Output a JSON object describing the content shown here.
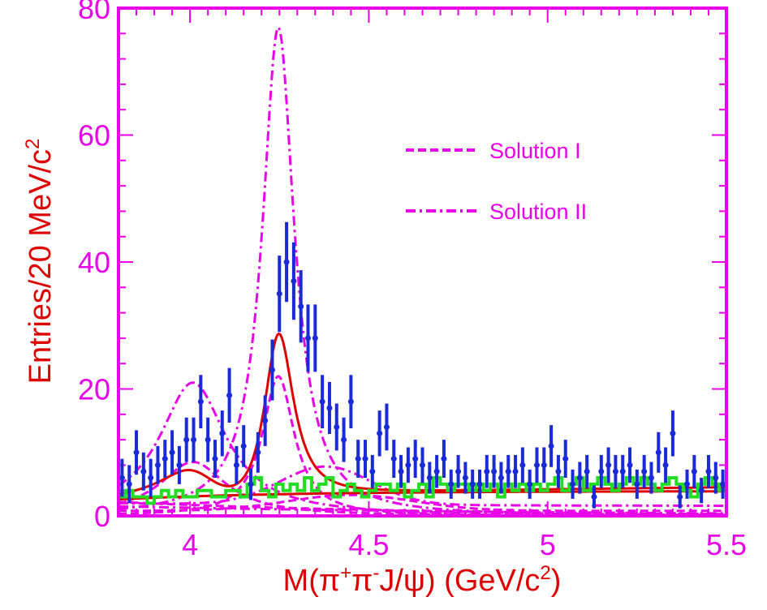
{
  "chart_data": {
    "type": "scatter",
    "xlabel": {
      "main": "M(π",
      "sup1": "+",
      "mid1": "π",
      "sup2": "-",
      "mid2": "J/ψ) (GeV/c",
      "sup3": "2",
      "end": ")"
    },
    "ylabel": {
      "main": "Entries/20 MeV/c",
      "sup": "2"
    },
    "xlim": [
      3.8,
      5.5
    ],
    "ylim": [
      0,
      80
    ],
    "xticks": [
      {
        "value": 4.0,
        "label": "4"
      },
      {
        "value": 4.5,
        "label": "4.5"
      },
      {
        "value": 5.0,
        "label": "5"
      },
      {
        "value": 5.5,
        "label": "5.5"
      }
    ],
    "yticks": [
      {
        "value": 0,
        "label": "0"
      },
      {
        "value": 20,
        "label": "20"
      },
      {
        "value": 40,
        "label": "40"
      },
      {
        "value": 60,
        "label": "60"
      },
      {
        "value": 80,
        "label": "80"
      }
    ],
    "colors": {
      "frame": "#e800e8",
      "data": "#1a2ad6",
      "fit": "#dd0000",
      "background": "#22dd22",
      "components": "#e800e8"
    },
    "legend": {
      "position": "top-right",
      "entries": [
        {
          "label": "Solution I",
          "style": "dashed"
        },
        {
          "label": "Solution II",
          "style": "dash-dot"
        }
      ]
    },
    "series": [
      {
        "kind": "data-points",
        "x": [
          3.81,
          3.83,
          3.85,
          3.87,
          3.89,
          3.91,
          3.93,
          3.95,
          3.97,
          3.99,
          4.01,
          4.03,
          4.05,
          4.07,
          4.09,
          4.11,
          4.13,
          4.15,
          4.17,
          4.19,
          4.21,
          4.23,
          4.25,
          4.27,
          4.29,
          4.31,
          4.33,
          4.35,
          4.37,
          4.39,
          4.41,
          4.43,
          4.45,
          4.47,
          4.49,
          4.51,
          4.53,
          4.55,
          4.57,
          4.59,
          4.61,
          4.63,
          4.65,
          4.67,
          4.69,
          4.71,
          4.73,
          4.75,
          4.77,
          4.79,
          4.81,
          4.83,
          4.85,
          4.87,
          4.89,
          4.91,
          4.93,
          4.95,
          4.97,
          4.99,
          5.01,
          5.03,
          5.05,
          5.07,
          5.09,
          5.11,
          5.13,
          5.15,
          5.17,
          5.19,
          5.21,
          5.23,
          5.25,
          5.27,
          5.29,
          5.31,
          5.33,
          5.35,
          5.37,
          5.39,
          5.41,
          5.43,
          5.45,
          5.47,
          5.49
        ],
        "y": [
          6,
          5,
          10,
          7,
          6,
          8,
          9,
          10,
          8,
          12,
          12,
          18,
          12,
          9,
          13,
          19,
          8,
          11,
          5,
          10,
          15,
          23,
          35,
          40,
          37,
          33,
          28,
          28,
          18,
          17,
          14,
          12,
          18,
          9,
          9,
          7,
          13,
          14,
          9,
          7,
          8,
          9,
          8,
          6,
          7,
          9,
          5,
          7,
          6,
          5,
          5,
          7,
          7,
          6,
          7,
          7,
          8,
          5,
          8,
          8,
          11,
          7,
          9,
          5,
          6,
          7,
          3,
          7,
          8,
          7,
          7,
          8,
          5,
          7,
          6,
          10,
          8,
          13,
          3,
          5,
          7,
          4,
          7,
          6,
          5
        ],
        "err": [
          3,
          3,
          3.5,
          3,
          3,
          3,
          3,
          3.5,
          3,
          3.5,
          3.5,
          4.2,
          3.5,
          3,
          3.6,
          4.3,
          3,
          3.3,
          2.5,
          3.2,
          4,
          4.8,
          6,
          6.3,
          6.1,
          5.7,
          5.3,
          5.3,
          4.2,
          4.1,
          3.7,
          3.5,
          4.2,
          3,
          3,
          2.6,
          3.6,
          3.7,
          3,
          2.6,
          2.8,
          3,
          2.8,
          2.5,
          2.6,
          3,
          2.3,
          2.6,
          2.5,
          2.3,
          2.3,
          2.6,
          2.6,
          2.5,
          2.6,
          2.6,
          2.8,
          2.3,
          2.8,
          2.8,
          3.3,
          2.6,
          3,
          2.3,
          2.5,
          2.6,
          1.8,
          2.6,
          2.8,
          2.6,
          2.6,
          2.8,
          2.3,
          2.6,
          2.5,
          3.2,
          2.8,
          3.6,
          1.8,
          2.3,
          2.6,
          2,
          2.6,
          2.5,
          2.3
        ]
      },
      {
        "kind": "background-histogram",
        "x": [
          3.81,
          3.83,
          3.85,
          3.87,
          3.89,
          3.91,
          3.93,
          3.95,
          3.97,
          3.99,
          4.01,
          4.03,
          4.05,
          4.07,
          4.09,
          4.11,
          4.13,
          4.15,
          4.17,
          4.19,
          4.21,
          4.23,
          4.25,
          4.27,
          4.29,
          4.31,
          4.33,
          4.35,
          4.37,
          4.39,
          4.41,
          4.43,
          4.45,
          4.47,
          4.49,
          4.51,
          4.53,
          4.55,
          4.57,
          4.59,
          4.61,
          4.63,
          4.65,
          4.67,
          4.69,
          4.71,
          4.73,
          4.75,
          4.77,
          4.79,
          4.81,
          4.83,
          4.85,
          4.87,
          4.89,
          4.91,
          4.93,
          4.95,
          4.97,
          4.99,
          5.01,
          5.03,
          5.05,
          5.07,
          5.09,
          5.11,
          5.13,
          5.15,
          5.17,
          5.19,
          5.21,
          5.23,
          5.25,
          5.27,
          5.29,
          5.31,
          5.33,
          5.35,
          5.37,
          5.39,
          5.41,
          5.43,
          5.45,
          5.47,
          5.49
        ],
        "y": [
          3,
          4,
          3,
          3,
          2,
          3,
          4,
          3,
          4,
          3,
          3,
          4,
          4,
          3,
          3,
          4,
          4,
          3,
          5,
          6,
          4,
          3,
          5,
          4,
          5,
          4,
          6,
          4,
          5,
          6,
          3,
          4,
          5,
          4,
          3,
          4,
          5,
          5,
          4,
          5,
          3,
          4,
          5,
          3,
          6,
          5,
          4,
          5,
          5,
          4,
          5,
          4,
          5,
          3,
          5,
          4,
          5,
          4,
          5,
          4,
          5,
          6,
          4,
          5,
          6,
          4,
          5,
          6,
          5,
          4,
          5,
          6,
          5,
          6,
          5,
          4,
          5,
          6,
          5,
          4,
          3,
          5,
          6,
          5,
          4
        ]
      }
    ]
  }
}
